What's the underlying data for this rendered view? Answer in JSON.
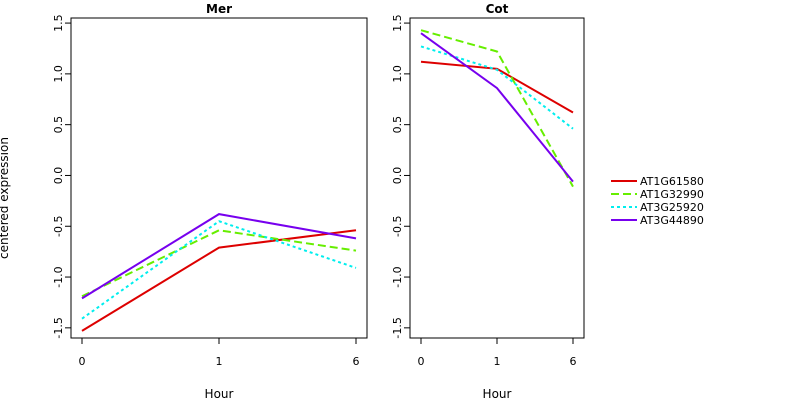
{
  "chart_data": {
    "type": "line",
    "ylabel": "centered expression",
    "xlabel": "Hour",
    "x": [
      "0",
      "1",
      "6"
    ],
    "ylim": [
      -1.6,
      1.55
    ],
    "yticks": [
      "-1.5",
      "-1.0",
      "-0.5",
      "0.0",
      "0.5",
      "1.0",
      "1.5"
    ],
    "legend_position": "right",
    "series_styles": [
      {
        "color": "#dd0000",
        "dash": "solid"
      },
      {
        "color": "#66ee00",
        "dash": "dashed"
      },
      {
        "color": "#00eeee",
        "dash": "dotted"
      },
      {
        "color": "#7700ee",
        "dash": "solid"
      }
    ],
    "legend": [
      "AT1G61580",
      "AT1G32990",
      "AT3G25920",
      "AT3G44890"
    ],
    "panels": [
      {
        "title": "Mer",
        "series": [
          {
            "name": "AT1G61580",
            "values": [
              -1.53,
              -0.71,
              -0.54
            ]
          },
          {
            "name": "AT1G32990",
            "values": [
              -1.19,
              -0.54,
              -0.74
            ]
          },
          {
            "name": "AT3G25920",
            "values": [
              -1.41,
              -0.45,
              -0.91
            ]
          },
          {
            "name": "AT3G44890",
            "values": [
              -1.21,
              -0.38,
              -0.62
            ]
          }
        ]
      },
      {
        "title": "Cot",
        "series": [
          {
            "name": "AT1G61580",
            "values": [
              1.12,
              1.05,
              0.62
            ]
          },
          {
            "name": "AT1G32990",
            "values": [
              1.43,
              1.22,
              -0.11
            ]
          },
          {
            "name": "AT3G25920",
            "values": [
              1.27,
              1.04,
              0.46
            ]
          },
          {
            "name": "AT3G44890",
            "values": [
              1.4,
              0.86,
              -0.06
            ]
          }
        ]
      }
    ]
  }
}
